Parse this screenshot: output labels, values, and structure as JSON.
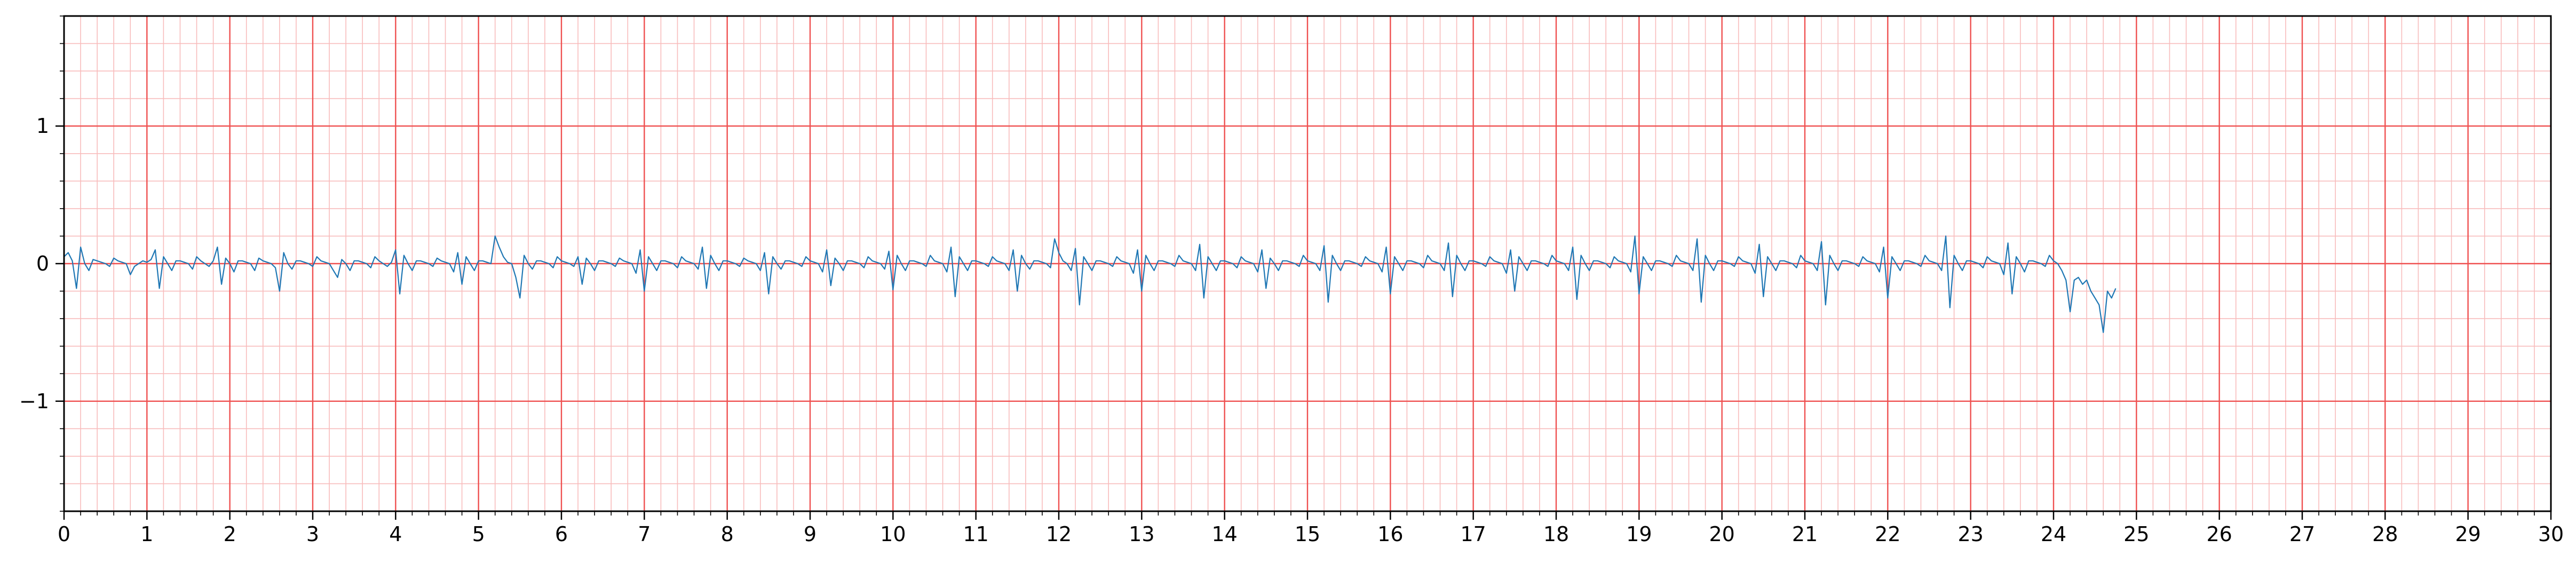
{
  "chart_data": {
    "type": "line",
    "title": "",
    "xlabel": "",
    "ylabel": "",
    "xlim": [
      0,
      30
    ],
    "ylim": [
      -1.8,
      1.8
    ],
    "x_ticks": [
      "0",
      "1",
      "2",
      "3",
      "4",
      "5",
      "6",
      "7",
      "8",
      "9",
      "10",
      "11",
      "12",
      "13",
      "14",
      "15",
      "16",
      "17",
      "18",
      "19",
      "20",
      "21",
      "22",
      "23",
      "24",
      "25",
      "26",
      "27",
      "28",
      "29",
      "30"
    ],
    "y_ticks": [
      {
        "value": 1,
        "label": "1"
      },
      {
        "value": 0,
        "label": "0"
      },
      {
        "value": -1,
        "label": "−1"
      }
    ],
    "grid": {
      "major": true,
      "minor": true,
      "major_x_step": 1,
      "minor_x_step": 0.2,
      "major_y_step": 1,
      "minor_y_step": 0.2
    },
    "colors": {
      "series": "#1f77b4",
      "major_grid": "#ef5050",
      "minor_grid": "#f8bcbc",
      "axis": "#000000"
    },
    "series": [
      {
        "sampling_interval": 0.05,
        "description_of_values": "ECG-like signal samples in data units",
        "values": [
          0.05,
          0.08,
          0.02,
          -0.18,
          0.12,
          0.0,
          -0.05,
          0.03,
          0.02,
          0.01,
          0.0,
          -0.02,
          0.04,
          0.02,
          0.01,
          0.0,
          -0.08,
          -0.02,
          0.0,
          0.02,
          0.01,
          0.03,
          0.1,
          -0.18,
          0.05,
          0.0,
          -0.05,
          0.02,
          0.02,
          0.01,
          0.0,
          -0.04,
          0.05,
          0.02,
          0.0,
          -0.02,
          0.02,
          0.12,
          -0.15,
          0.04,
          0.0,
          -0.06,
          0.02,
          0.02,
          0.01,
          0.0,
          -0.05,
          0.04,
          0.02,
          0.01,
          0.0,
          -0.03,
          -0.2,
          0.08,
          0.0,
          -0.04,
          0.02,
          0.02,
          0.01,
          0.0,
          -0.02,
          0.05,
          0.02,
          0.01,
          0.0,
          -0.05,
          -0.1,
          0.03,
          0.0,
          -0.05,
          0.02,
          0.02,
          0.01,
          0.0,
          -0.03,
          0.05,
          0.02,
          0.0,
          -0.02,
          0.01,
          0.1,
          -0.22,
          0.06,
          0.0,
          -0.05,
          0.02,
          0.02,
          0.01,
          0.0,
          -0.02,
          0.04,
          0.02,
          0.01,
          0.0,
          -0.06,
          0.08,
          -0.15,
          0.05,
          0.0,
          -0.05,
          0.02,
          0.02,
          0.01,
          0.0,
          0.2,
          0.12,
          0.05,
          0.01,
          0.0,
          -0.1,
          -0.25,
          0.06,
          0.0,
          -0.04,
          0.02,
          0.02,
          0.01,
          0.0,
          -0.03,
          0.05,
          0.02,
          0.01,
          0.0,
          -0.02,
          0.05,
          -0.15,
          0.04,
          0.0,
          -0.05,
          0.02,
          0.02,
          0.01,
          0.0,
          -0.02,
          0.04,
          0.02,
          0.01,
          0.0,
          -0.07,
          0.1,
          -0.2,
          0.05,
          0.0,
          -0.05,
          0.02,
          0.02,
          0.01,
          0.0,
          -0.03,
          0.05,
          0.02,
          0.01,
          0.0,
          -0.04,
          0.12,
          -0.18,
          0.06,
          0.0,
          -0.05,
          0.02,
          0.02,
          0.01,
          0.0,
          -0.02,
          0.04,
          0.02,
          0.01,
          0.0,
          -0.05,
          0.08,
          -0.22,
          0.05,
          0.0,
          -0.04,
          0.02,
          0.02,
          0.01,
          0.0,
          -0.02,
          0.05,
          0.02,
          0.01,
          0.0,
          -0.06,
          0.1,
          -0.16,
          0.04,
          0.0,
          -0.05,
          0.02,
          0.02,
          0.01,
          0.0,
          -0.03,
          0.05,
          0.02,
          0.01,
          0.0,
          -0.04,
          0.09,
          -0.19,
          0.06,
          0.0,
          -0.05,
          0.02,
          0.02,
          0.01,
          0.0,
          -0.02,
          0.06,
          0.02,
          0.01,
          0.0,
          -0.06,
          0.12,
          -0.24,
          0.05,
          0.0,
          -0.05,
          0.02,
          0.02,
          0.01,
          0.0,
          -0.02,
          0.05,
          0.02,
          0.01,
          0.0,
          -0.05,
          0.1,
          -0.2,
          0.06,
          0.0,
          -0.04,
          0.02,
          0.02,
          0.01,
          0.0,
          -0.03,
          0.18,
          0.08,
          0.02,
          0.0,
          -0.05,
          0.11,
          -0.3,
          0.05,
          0.0,
          -0.05,
          0.02,
          0.02,
          0.01,
          0.0,
          -0.02,
          0.05,
          0.02,
          0.01,
          0.0,
          -0.07,
          0.1,
          -0.2,
          0.06,
          0.0,
          -0.05,
          0.02,
          0.02,
          0.01,
          0.0,
          -0.02,
          0.06,
          0.02,
          0.01,
          0.0,
          -0.05,
          0.14,
          -0.25,
          0.05,
          0.0,
          -0.05,
          0.02,
          0.02,
          0.01,
          0.0,
          -0.03,
          0.05,
          0.02,
          0.01,
          0.0,
          -0.06,
          0.1,
          -0.18,
          0.04,
          0.0,
          -0.05,
          0.02,
          0.02,
          0.01,
          0.0,
          -0.02,
          0.06,
          0.02,
          0.01,
          0.0,
          -0.05,
          0.13,
          -0.28,
          0.06,
          0.0,
          -0.05,
          0.02,
          0.02,
          0.01,
          0.0,
          -0.02,
          0.05,
          0.02,
          0.01,
          0.0,
          -0.06,
          0.12,
          -0.22,
          0.05,
          0.0,
          -0.05,
          0.02,
          0.02,
          0.01,
          0.0,
          -0.03,
          0.06,
          0.02,
          0.01,
          0.0,
          -0.05,
          0.15,
          -0.24,
          0.06,
          0.0,
          -0.05,
          0.02,
          0.02,
          0.01,
          0.0,
          -0.02,
          0.05,
          0.02,
          0.01,
          0.0,
          -0.07,
          0.1,
          -0.2,
          0.05,
          0.0,
          -0.05,
          0.02,
          0.02,
          0.01,
          0.0,
          -0.02,
          0.06,
          0.02,
          0.01,
          0.0,
          -0.05,
          0.12,
          -0.26,
          0.06,
          0.0,
          -0.05,
          0.02,
          0.02,
          0.01,
          0.0,
          -0.03,
          0.05,
          0.02,
          0.01,
          0.0,
          -0.06,
          0.2,
          -0.22,
          0.05,
          0.0,
          -0.05,
          0.02,
          0.02,
          0.01,
          0.0,
          -0.02,
          0.06,
          0.02,
          0.01,
          0.0,
          -0.05,
          0.18,
          -0.28,
          0.06,
          0.0,
          -0.05,
          0.02,
          0.02,
          0.01,
          0.0,
          -0.02,
          0.05,
          0.02,
          0.01,
          0.0,
          -0.07,
          0.14,
          -0.24,
          0.05,
          0.0,
          -0.05,
          0.02,
          0.02,
          0.01,
          0.0,
          -0.03,
          0.06,
          0.02,
          0.01,
          0.0,
          -0.05,
          0.16,
          -0.3,
          0.06,
          0.0,
          -0.05,
          0.02,
          0.02,
          0.01,
          0.0,
          -0.02,
          0.05,
          0.02,
          0.01,
          0.0,
          -0.06,
          0.12,
          -0.25,
          0.05,
          0.0,
          -0.05,
          0.02,
          0.02,
          0.01,
          0.0,
          -0.02,
          0.06,
          0.02,
          0.01,
          0.0,
          -0.05,
          0.2,
          -0.32,
          0.06,
          0.0,
          -0.05,
          0.02,
          0.02,
          0.01,
          0.0,
          -0.03,
          0.05,
          0.02,
          0.01,
          0.0,
          -0.08,
          0.15,
          -0.22,
          0.05,
          0.0,
          -0.06,
          0.02,
          0.02,
          0.01,
          0.0,
          -0.02,
          0.06,
          0.02,
          0.0,
          -0.05,
          -0.12,
          -0.35,
          -0.12,
          -0.1,
          -0.15,
          -0.12,
          -0.2,
          -0.25,
          -0.3,
          -0.5,
          -0.2,
          -0.25,
          -0.18
        ]
      }
    ]
  }
}
